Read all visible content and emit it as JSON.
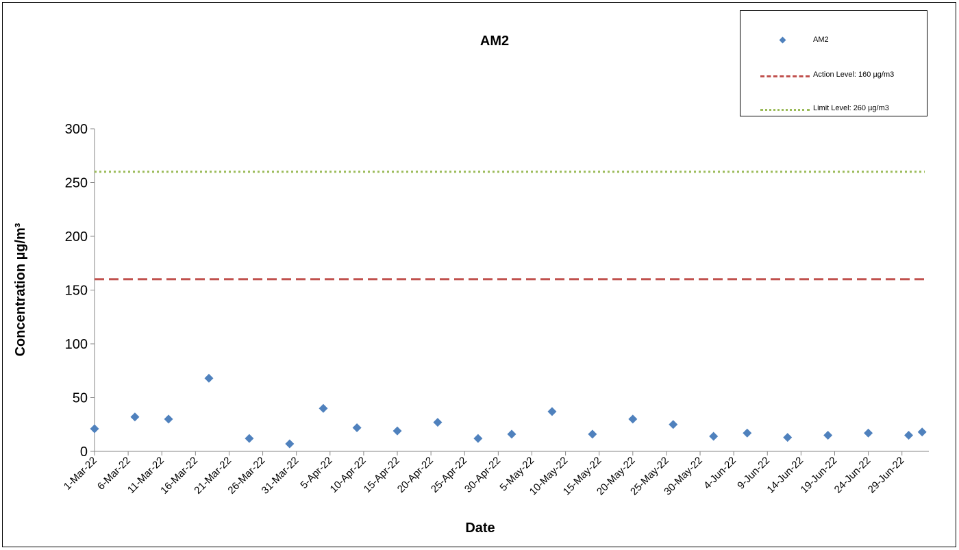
{
  "chart_data": {
    "type": "scatter",
    "title": "AM2",
    "xlabel": "Date",
    "ylabel": "Concentration µg/m³",
    "ylim": [
      0,
      300
    ],
    "yticks": [
      0,
      50,
      100,
      150,
      200,
      250,
      300
    ],
    "xlim": [
      "2022-03-01",
      "2022-07-03"
    ],
    "xtick_labels": [
      "1-Mar-22",
      "6-Mar-22",
      "11-Mar-22",
      "16-Mar-22",
      "21-Mar-22",
      "26-Mar-22",
      "31-Mar-22",
      "5-Apr-22",
      "10-Apr-22",
      "15-Apr-22",
      "20-Apr-22",
      "25-Apr-22",
      "30-Apr-22",
      "5-May-22",
      "10-May-22",
      "15-May-22",
      "20-May-22",
      "25-May-22",
      "30-May-22",
      "4-Jun-22",
      "9-Jun-22",
      "14-Jun-22",
      "19-Jun-22",
      "24-Jun-22",
      "29-Jun-22"
    ],
    "grid": false,
    "legend_position": "top-right",
    "series": [
      {
        "name": "AM2",
        "kind": "points",
        "color": "#4f81bd",
        "points": [
          {
            "x": "2022-03-01",
            "y": 21
          },
          {
            "x": "2022-03-07",
            "y": 32
          },
          {
            "x": "2022-03-12",
            "y": 30
          },
          {
            "x": "2022-03-18",
            "y": 68
          },
          {
            "x": "2022-03-24",
            "y": 12
          },
          {
            "x": "2022-03-30",
            "y": 7
          },
          {
            "x": "2022-04-04",
            "y": 40
          },
          {
            "x": "2022-04-09",
            "y": 22
          },
          {
            "x": "2022-04-15",
            "y": 19
          },
          {
            "x": "2022-04-21",
            "y": 27
          },
          {
            "x": "2022-04-27",
            "y": 12
          },
          {
            "x": "2022-05-02",
            "y": 16
          },
          {
            "x": "2022-05-08",
            "y": 37
          },
          {
            "x": "2022-05-14",
            "y": 16
          },
          {
            "x": "2022-05-20",
            "y": 30
          },
          {
            "x": "2022-05-26",
            "y": 25
          },
          {
            "x": "2022-06-01",
            "y": 14
          },
          {
            "x": "2022-06-06",
            "y": 17
          },
          {
            "x": "2022-06-12",
            "y": 13
          },
          {
            "x": "2022-06-18",
            "y": 15
          },
          {
            "x": "2022-06-24",
            "y": 17
          },
          {
            "x": "2022-06-30",
            "y": 15
          },
          {
            "x": "2022-07-02",
            "y": 18
          }
        ]
      },
      {
        "name": "Action Level: 160 µg/m3",
        "kind": "hline",
        "y": 160,
        "color": "#c0504d",
        "style": "dashed"
      },
      {
        "name": "Limit Level: 260 µg/m3",
        "kind": "hline",
        "y": 260,
        "color": "#9bbb59",
        "style": "dotted"
      }
    ]
  }
}
